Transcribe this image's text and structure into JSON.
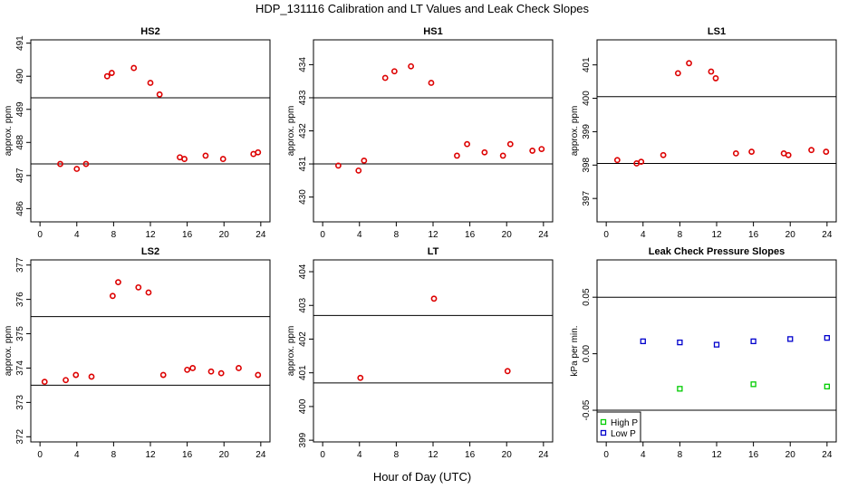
{
  "title": "HDP_131116  Calibration and LT Values and Leak Check Slopes",
  "xlabel": "Hour of Day (UTC)",
  "legend": {
    "high": "High P",
    "low": "Low P",
    "high_color": "#00cc00",
    "low_color": "#0000cc"
  },
  "point_color": "#dd0000",
  "chart_data": [
    {
      "type": "scatter",
      "title": "HS2",
      "ylabel": "approx. ppm",
      "xlim": [
        -1,
        25
      ],
      "ylim": [
        485.6,
        491.1
      ],
      "xticks": [
        0,
        4,
        8,
        12,
        16,
        20,
        24
      ],
      "xtick_labels": [
        "0",
        "4",
        "8",
        "12",
        "16",
        "20",
        "24"
      ],
      "yticks": [
        486,
        487,
        488,
        489,
        490,
        491
      ],
      "ytick_labels": [
        "486",
        "487",
        "488",
        "489",
        "490",
        "491"
      ],
      "hlines": [
        489.35,
        487.35
      ],
      "x": [
        2.2,
        4.0,
        5.0,
        7.3,
        7.8,
        10.2,
        12.0,
        13.0,
        15.2,
        15.7,
        18.0,
        19.9,
        23.2,
        23.7
      ],
      "y": [
        487.35,
        487.2,
        487.35,
        490.0,
        490.1,
        490.25,
        489.8,
        489.45,
        487.55,
        487.5,
        487.6,
        487.5,
        487.65,
        487.7
      ]
    },
    {
      "type": "scatter",
      "title": "HS1",
      "ylabel": "approx. ppm",
      "xlim": [
        -1,
        25
      ],
      "ylim": [
        429.25,
        434.75
      ],
      "xticks": [
        0,
        4,
        8,
        12,
        16,
        20,
        24
      ],
      "xtick_labels": [
        "0",
        "4",
        "8",
        "12",
        "16",
        "20",
        "24"
      ],
      "yticks": [
        430,
        431,
        432,
        433,
        434
      ],
      "ytick_labels": [
        "430",
        "431",
        "432",
        "433",
        "434"
      ],
      "hlines": [
        433.0,
        431.0
      ],
      "x": [
        1.7,
        3.9,
        4.5,
        6.8,
        7.8,
        9.6,
        11.8,
        14.6,
        15.7,
        17.6,
        19.6,
        20.4,
        22.8,
        23.8
      ],
      "y": [
        430.95,
        430.8,
        431.1,
        433.6,
        433.8,
        433.95,
        433.45,
        431.25,
        431.6,
        431.35,
        431.25,
        431.6,
        431.4,
        431.45
      ]
    },
    {
      "type": "scatter",
      "title": "LS1",
      "ylabel": "approx. ppm",
      "xlim": [
        -1,
        25
      ],
      "ylim": [
        396.3,
        401.75
      ],
      "xticks": [
        0,
        4,
        8,
        12,
        16,
        20,
        24
      ],
      "xtick_labels": [
        "0",
        "4",
        "8",
        "12",
        "16",
        "20",
        "24"
      ],
      "yticks": [
        397,
        398,
        399,
        400,
        401
      ],
      "ytick_labels": [
        "397",
        "398",
        "399",
        "400",
        "401"
      ],
      "hlines": [
        400.05,
        398.05
      ],
      "x": [
        1.2,
        3.3,
        3.8,
        6.2,
        7.8,
        9.0,
        11.4,
        11.9,
        14.1,
        15.8,
        19.3,
        19.8,
        22.3,
        23.9
      ],
      "y": [
        398.15,
        398.05,
        398.1,
        398.3,
        400.75,
        401.05,
        400.8,
        400.6,
        398.35,
        398.4,
        398.35,
        398.3,
        398.45,
        398.4
      ]
    },
    {
      "type": "scatter",
      "title": "LS2",
      "ylabel": "approx. ppm",
      "xlim": [
        -1,
        25
      ],
      "ylim": [
        371.85,
        377.15
      ],
      "xticks": [
        0,
        4,
        8,
        12,
        16,
        20,
        24
      ],
      "xtick_labels": [
        "0",
        "4",
        "8",
        "12",
        "16",
        "20",
        "24"
      ],
      "yticks": [
        372,
        373,
        374,
        375,
        376,
        377
      ],
      "ytick_labels": [
        "372",
        "373",
        "374",
        "375",
        "376",
        "377"
      ],
      "hlines": [
        375.5,
        373.5
      ],
      "x": [
        0.5,
        2.8,
        3.9,
        5.6,
        7.9,
        8.5,
        10.7,
        11.8,
        13.4,
        16.0,
        16.6,
        18.6,
        19.7,
        21.6,
        23.7
      ],
      "y": [
        373.6,
        373.65,
        373.8,
        373.75,
        376.1,
        376.5,
        376.35,
        376.2,
        373.8,
        373.95,
        374.0,
        373.9,
        373.85,
        374.0,
        373.8
      ]
    },
    {
      "type": "scatter",
      "title": "LT",
      "ylabel": "approx. ppm",
      "xlim": [
        -1,
        25
      ],
      "ylim": [
        398.95,
        404.35
      ],
      "xticks": [
        0,
        4,
        8,
        12,
        16,
        20,
        24
      ],
      "xtick_labels": [
        "0",
        "4",
        "8",
        "12",
        "16",
        "20",
        "24"
      ],
      "yticks": [
        399,
        400,
        401,
        402,
        403,
        404
      ],
      "ytick_labels": [
        "399",
        "400",
        "401",
        "402",
        "403",
        "404"
      ],
      "hlines": [
        402.7,
        400.7
      ],
      "x": [
        4.1,
        12.1,
        20.1
      ],
      "y": [
        400.85,
        403.2,
        401.05
      ]
    },
    {
      "type": "scatter",
      "title": "Leak Check Pressure Slopes",
      "ylabel": "kPa per min.",
      "xlim": [
        -1,
        25
      ],
      "ylim": [
        -0.078,
        0.083
      ],
      "xticks": [
        0,
        4,
        8,
        12,
        16,
        20,
        24
      ],
      "xtick_labels": [
        "0",
        "4",
        "8",
        "12",
        "16",
        "20",
        "24"
      ],
      "yticks": [
        -0.05,
        0.0,
        0.05
      ],
      "ytick_labels": [
        "-0.05",
        "0.00",
        "0.05"
      ],
      "hlines": [
        0.05,
        -0.05
      ],
      "series": [
        {
          "name": "High P",
          "x": [
            8,
            16,
            24
          ],
          "y": [
            -0.031,
            -0.027,
            -0.029
          ]
        },
        {
          "name": "Low P",
          "x": [
            4,
            8,
            12,
            16,
            20,
            24
          ],
          "y": [
            0.011,
            0.01,
            0.008,
            0.011,
            0.013,
            0.014
          ]
        }
      ]
    }
  ]
}
